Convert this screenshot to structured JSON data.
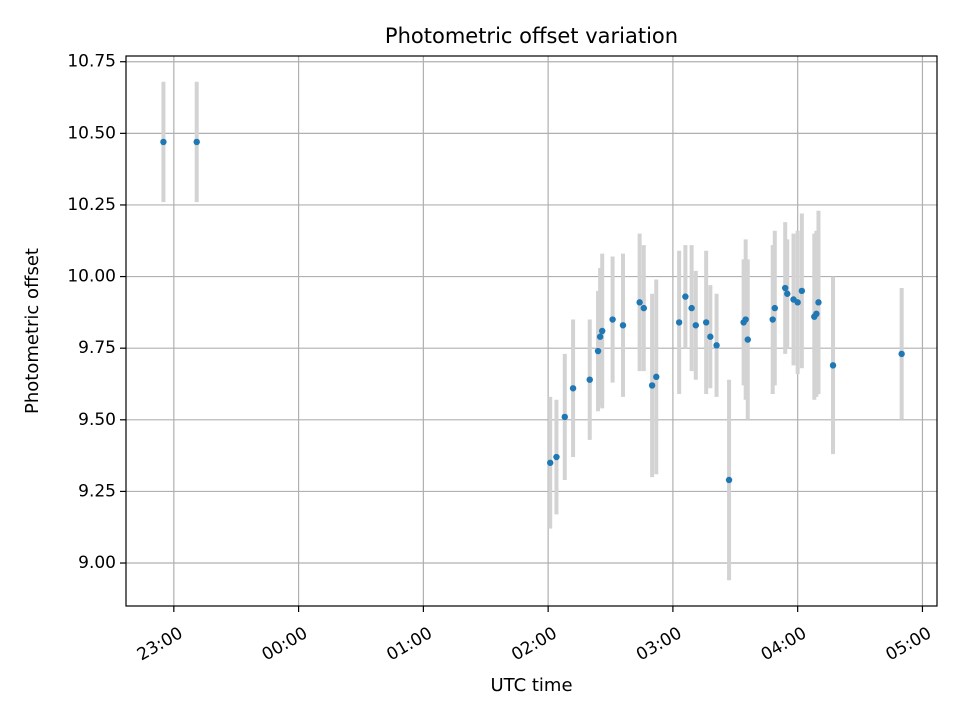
{
  "chart_data": {
    "type": "scatter",
    "title": "Photometric offset variation",
    "xlabel": "UTC time",
    "ylabel": "Photometric offset",
    "x_ticks": [
      "23:00",
      "00:00",
      "01:00",
      "02:00",
      "03:00",
      "04:00",
      "05:00"
    ],
    "y_ticks": [
      "9.00",
      "9.25",
      "9.50",
      "9.75",
      "10.00",
      "10.25",
      "10.50",
      "10.75"
    ],
    "xlim": [
      "22:37",
      "05:07"
    ],
    "ylim": [
      8.85,
      10.77
    ],
    "grid": true,
    "colors": {
      "point": "#1f77b4",
      "errorbar": "#d3d3d3",
      "grid": "#b0b0b0"
    },
    "series": [
      {
        "points": [
          {
            "x": "22:55",
            "y": 10.47,
            "err": 0.21
          },
          {
            "x": "23:11",
            "y": 10.47,
            "err": 0.21
          },
          {
            "x": "02:01",
            "y": 9.35,
            "err": 0.23
          },
          {
            "x": "02:04",
            "y": 9.37,
            "err": 0.2
          },
          {
            "x": "02:08",
            "y": 9.51,
            "err": 0.22
          },
          {
            "x": "02:12",
            "y": 9.61,
            "err": 0.24
          },
          {
            "x": "02:20",
            "y": 9.64,
            "err": 0.21
          },
          {
            "x": "02:24",
            "y": 9.74,
            "err": 0.21
          },
          {
            "x": "02:25",
            "y": 9.79,
            "err": 0.24
          },
          {
            "x": "02:26",
            "y": 9.81,
            "err": 0.27
          },
          {
            "x": "02:31",
            "y": 9.85,
            "err": 0.22
          },
          {
            "x": "02:36",
            "y": 9.83,
            "err": 0.25
          },
          {
            "x": "02:44",
            "y": 9.91,
            "err": 0.24
          },
          {
            "x": "02:46",
            "y": 9.89,
            "err": 0.22
          },
          {
            "x": "02:50",
            "y": 9.62,
            "err": 0.32
          },
          {
            "x": "02:52",
            "y": 9.65,
            "err": 0.34
          },
          {
            "x": "03:03",
            "y": 9.84,
            "err": 0.25
          },
          {
            "x": "03:06",
            "y": 9.93,
            "err": 0.18
          },
          {
            "x": "03:09",
            "y": 9.89,
            "err": 0.22
          },
          {
            "x": "03:11",
            "y": 9.83,
            "err": 0.19
          },
          {
            "x": "03:16",
            "y": 9.84,
            "err": 0.25
          },
          {
            "x": "03:18",
            "y": 9.79,
            "err": 0.18
          },
          {
            "x": "03:21",
            "y": 9.76,
            "err": 0.18
          },
          {
            "x": "03:27",
            "y": 9.29,
            "err": 0.35
          },
          {
            "x": "03:34",
            "y": 9.84,
            "err": 0.22
          },
          {
            "x": "03:35",
            "y": 9.85,
            "err": 0.28
          },
          {
            "x": "03:36",
            "y": 9.78,
            "err": 0.28
          },
          {
            "x": "03:48",
            "y": 9.85,
            "err": 0.26
          },
          {
            "x": "03:49",
            "y": 9.89,
            "err": 0.27
          },
          {
            "x": "03:54",
            "y": 9.96,
            "err": 0.23
          },
          {
            "x": "03:55",
            "y": 9.94,
            "err": 0.19
          },
          {
            "x": "03:58",
            "y": 9.92,
            "err": 0.23
          },
          {
            "x": "04:00",
            "y": 9.91,
            "err": 0.25
          },
          {
            "x": "04:02",
            "y": 9.95,
            "err": 0.27
          },
          {
            "x": "04:08",
            "y": 9.86,
            "err": 0.29
          },
          {
            "x": "04:09",
            "y": 9.87,
            "err": 0.29
          },
          {
            "x": "04:10",
            "y": 9.91,
            "err": 0.32
          },
          {
            "x": "04:17",
            "y": 9.69,
            "err": 0.31
          },
          {
            "x": "04:50",
            "y": 9.73,
            "err": 0.23
          }
        ]
      }
    ]
  }
}
